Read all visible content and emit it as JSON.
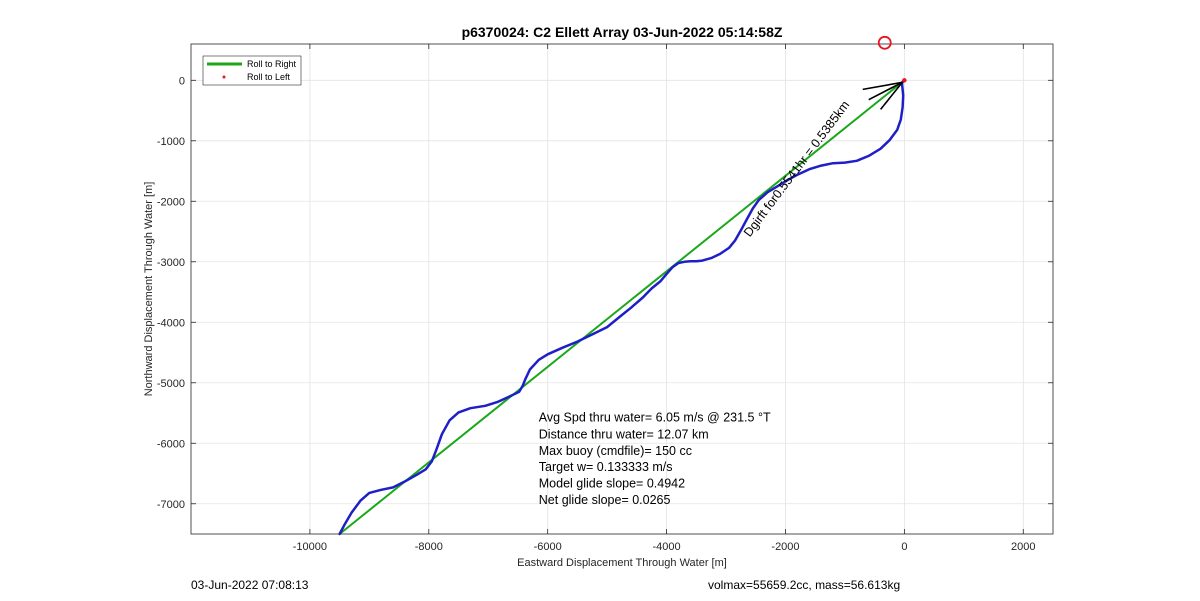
{
  "chart_data": {
    "type": "line",
    "title": "p6370024: C2 Ellett Array 03-Jun-2022 05:14:58Z",
    "xlabel": "Eastward Displacement Through Water [m]",
    "ylabel": "Northward Displacement Through Water [m]",
    "xlim": [
      -12000,
      2500
    ],
    "ylim": [
      -7500,
      600
    ],
    "xticks": [
      -10000,
      -8000,
      -6000,
      -4000,
      -2000,
      0,
      2000
    ],
    "xtick_labels": [
      "-10000",
      "-8000",
      "-6000",
      "-4000",
      "-2000",
      "0",
      "2000"
    ],
    "yticks": [
      0,
      -1000,
      -2000,
      -3000,
      -4000,
      -5000,
      -6000,
      -7000
    ],
    "ytick_labels": [
      "0",
      "-1000",
      "-2000",
      "-3000",
      "-4000",
      "-5000",
      "-6000",
      "-7000"
    ],
    "grid": true,
    "legend": {
      "placement": "top-left",
      "entries": [
        {
          "label": "Roll to Right",
          "color": "#1aa81a",
          "style": "line"
        },
        {
          "label": "Roll to Left",
          "color": "#e8141e",
          "style": "dot"
        }
      ]
    },
    "series": [
      {
        "name": "Roll to Right",
        "color": "#1aa81a",
        "x": [
          -9500,
          0
        ],
        "y": [
          -7500,
          0
        ]
      },
      {
        "color": "#1f1fc8",
        "x": [
          -9500,
          -9420,
          -9300,
          -9150,
          -9000,
          -8800,
          -8600,
          -8400,
          -8200,
          -8050,
          -7950,
          -7870,
          -7780,
          -7650,
          -7500,
          -7300,
          -7050,
          -6850,
          -6650,
          -6480,
          -6420,
          -6380,
          -6300,
          -6150,
          -6000,
          -5750,
          -5500,
          -5250,
          -5000,
          -4800,
          -4600,
          -4400,
          -4250,
          -4100,
          -4000,
          -3900,
          -3800,
          -3700,
          -3600,
          -3500,
          -3400,
          -3250,
          -3100,
          -2950,
          -2850,
          -2750,
          -2650,
          -2550,
          -2450,
          -2300,
          -2150,
          -2000,
          -1800,
          -1600,
          -1400,
          -1200,
          -1000,
          -800,
          -600,
          -400,
          -250,
          -120,
          -60,
          -30,
          -20,
          -40,
          -10,
          -5
        ],
        "y": [
          -7500,
          -7350,
          -7150,
          -6950,
          -6820,
          -6770,
          -6730,
          -6630,
          -6520,
          -6430,
          -6300,
          -6100,
          -5850,
          -5620,
          -5490,
          -5420,
          -5380,
          -5320,
          -5230,
          -5150,
          -5050,
          -4950,
          -4780,
          -4620,
          -4530,
          -4420,
          -4320,
          -4200,
          -4080,
          -3920,
          -3760,
          -3590,
          -3440,
          -3320,
          -3200,
          -3090,
          -3020,
          -3000,
          -2990,
          -2990,
          -2980,
          -2940,
          -2870,
          -2770,
          -2650,
          -2480,
          -2300,
          -2120,
          -1980,
          -1850,
          -1760,
          -1670,
          -1560,
          -1470,
          -1410,
          -1370,
          -1360,
          -1330,
          -1250,
          -1130,
          -990,
          -820,
          -650,
          -450,
          -250,
          -50,
          0,
          0
        ]
      }
    ],
    "annotations": [
      {
        "text": "Avg Spd thru water=  6.05 m/s @ 231.5 °T",
        "x": -6150,
        "y": -5640
      },
      {
        "text": "Distance thru water= 12.07 km",
        "x": -6150,
        "y": -5920
      },
      {
        "text": "Max buoy (cmdfile)= 150 cc",
        "x": -6150,
        "y": -6190
      },
      {
        "text": "Target w= 0.133333 m/s",
        "x": -6150,
        "y": -6460
      },
      {
        "text": "Model glide slope= 0.4942",
        "x": -6150,
        "y": -6730
      },
      {
        "text": "Net glide slope= 0.0265",
        "x": -6150,
        "y": -7000
      }
    ],
    "rotated_label": {
      "text": "Dgirft for0.5541hr = 0.5385km",
      "x": -2600,
      "y": -2600
    },
    "marker": {
      "shape": "circle",
      "color": "#e8141e",
      "x": -330,
      "y": 620
    }
  },
  "footer": {
    "left": "03-Jun-2022 07:08:13",
    "right": "volmax=55659.2cc, mass=56.613kg"
  }
}
